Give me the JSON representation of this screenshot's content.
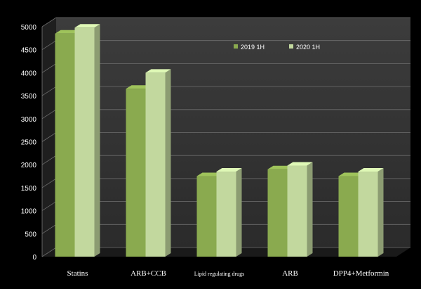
{
  "chart_data": {
    "type": "bar",
    "title": "",
    "xlabel": "",
    "ylabel": "",
    "ylim": [
      0,
      5000
    ],
    "yticks": [
      0,
      500,
      1000,
      1500,
      2000,
      2500,
      3000,
      3500,
      4000,
      4500,
      5000
    ],
    "grid": true,
    "legend_position": "top-right",
    "categories": [
      "Statins",
      "ARB+CCB",
      "Lipid regulating drugs",
      "ARB",
      "DPP4+Metformin"
    ],
    "series": [
      {
        "name": "2019 1H",
        "values": [
          4850,
          3650,
          1750,
          1900,
          1750
        ],
        "color": "#8aaa4f"
      },
      {
        "name": "2020 1H",
        "values": [
          4980,
          4000,
          1850,
          1980,
          1850
        ],
        "color": "#c2d89e"
      }
    ]
  }
}
